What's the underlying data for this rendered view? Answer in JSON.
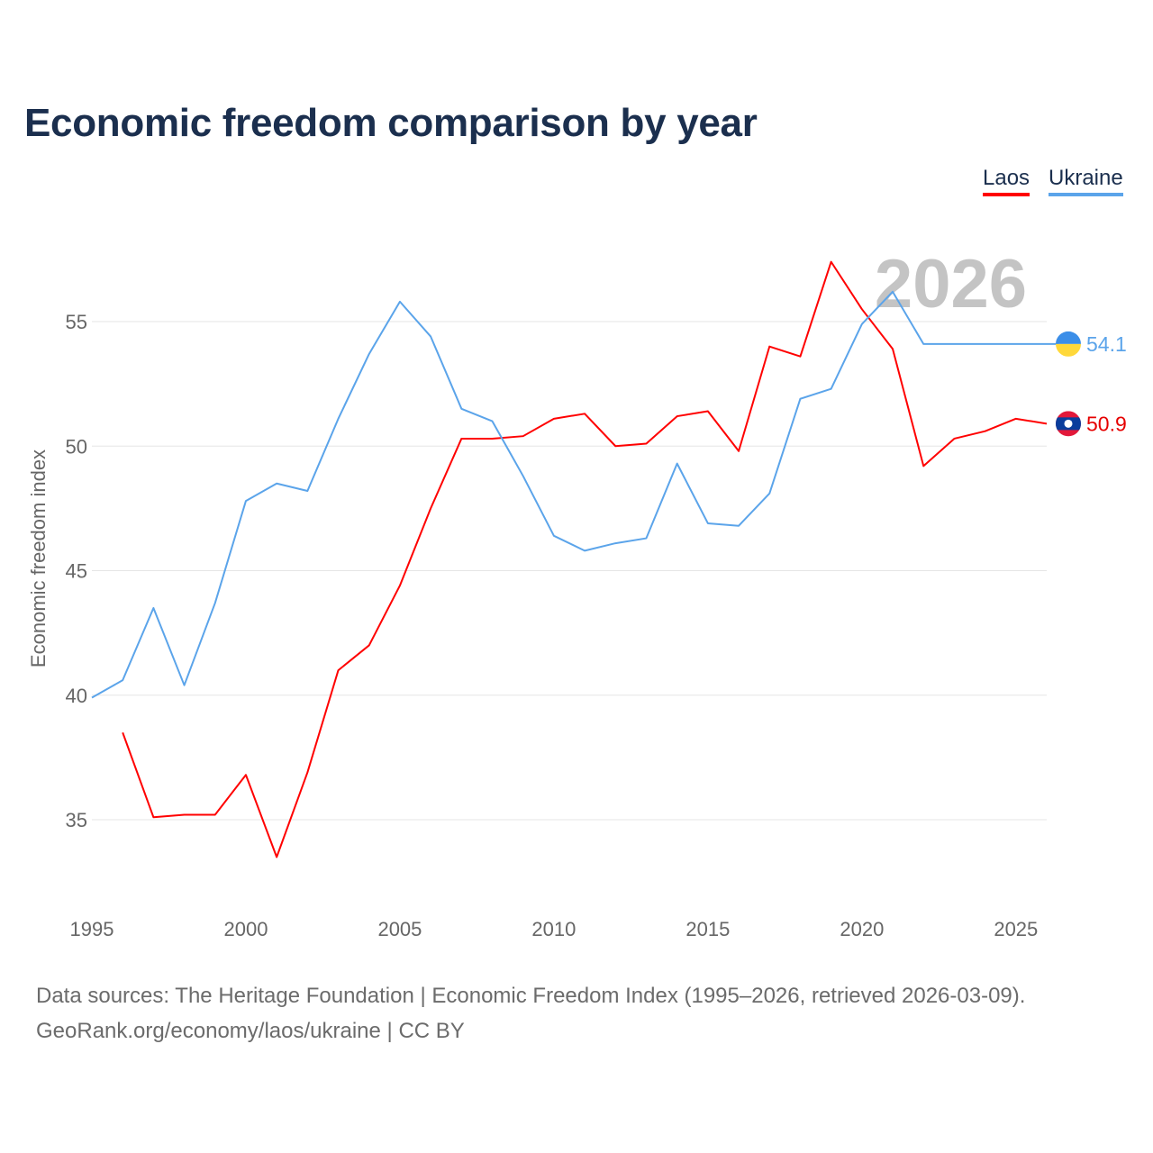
{
  "chart_data": {
    "type": "line",
    "title": "Economic freedom comparison by year",
    "xlabel": "",
    "ylabel": "Economic freedom index",
    "xlim": [
      1995,
      2026
    ],
    "ylim": [
      32,
      58.5
    ],
    "x_ticks": [
      "1995",
      "2000",
      "2005",
      "2010",
      "2015",
      "2020",
      "2025"
    ],
    "y_ticks": [
      "35",
      "40",
      "45",
      "50",
      "55"
    ],
    "grid": true,
    "legend_position": "top-right",
    "year_watermark": "2026",
    "series": [
      {
        "name": "Laos",
        "color": "#ff0000",
        "end_label": "50.9",
        "x": [
          1996,
          1997,
          1998,
          1999,
          2000,
          2001,
          2002,
          2003,
          2004,
          2005,
          2006,
          2007,
          2008,
          2009,
          2010,
          2011,
          2012,
          2013,
          2014,
          2015,
          2016,
          2017,
          2018,
          2019,
          2020,
          2021,
          2022,
          2023,
          2024,
          2025,
          2026
        ],
        "values": [
          38.5,
          35.1,
          35.2,
          35.2,
          36.8,
          33.5,
          36.9,
          41.0,
          42.0,
          44.4,
          47.5,
          50.3,
          50.3,
          50.4,
          51.1,
          51.3,
          50.0,
          50.1,
          51.2,
          51.4,
          49.8,
          54.0,
          53.6,
          57.4,
          55.5,
          53.9,
          49.2,
          50.3,
          50.6,
          51.1,
          50.9
        ]
      },
      {
        "name": "Ukraine",
        "color": "#5ba4ea",
        "end_label": "54.1",
        "x": [
          1995,
          1996,
          1997,
          1998,
          1999,
          2000,
          2001,
          2002,
          2003,
          2004,
          2005,
          2006,
          2007,
          2008,
          2009,
          2010,
          2011,
          2012,
          2013,
          2014,
          2015,
          2016,
          2017,
          2018,
          2019,
          2020,
          2021,
          2022,
          2023,
          2024,
          2025,
          2026
        ],
        "values": [
          39.9,
          40.6,
          43.5,
          40.4,
          43.7,
          47.8,
          48.5,
          48.2,
          51.1,
          53.7,
          55.8,
          54.4,
          51.5,
          51.0,
          48.8,
          46.4,
          45.8,
          46.1,
          46.3,
          49.3,
          46.9,
          46.8,
          48.1,
          51.9,
          52.3,
          54.9,
          56.2,
          54.1,
          54.1,
          54.1,
          54.1,
          54.1
        ]
      }
    ]
  },
  "source": {
    "line1": "Data sources: The Heritage Foundation | Economic Freedom Index (1995–2026, retrieved 2026-03-09).",
    "line2": "GeoRank.org/economy/laos/ukraine | CC BY"
  }
}
